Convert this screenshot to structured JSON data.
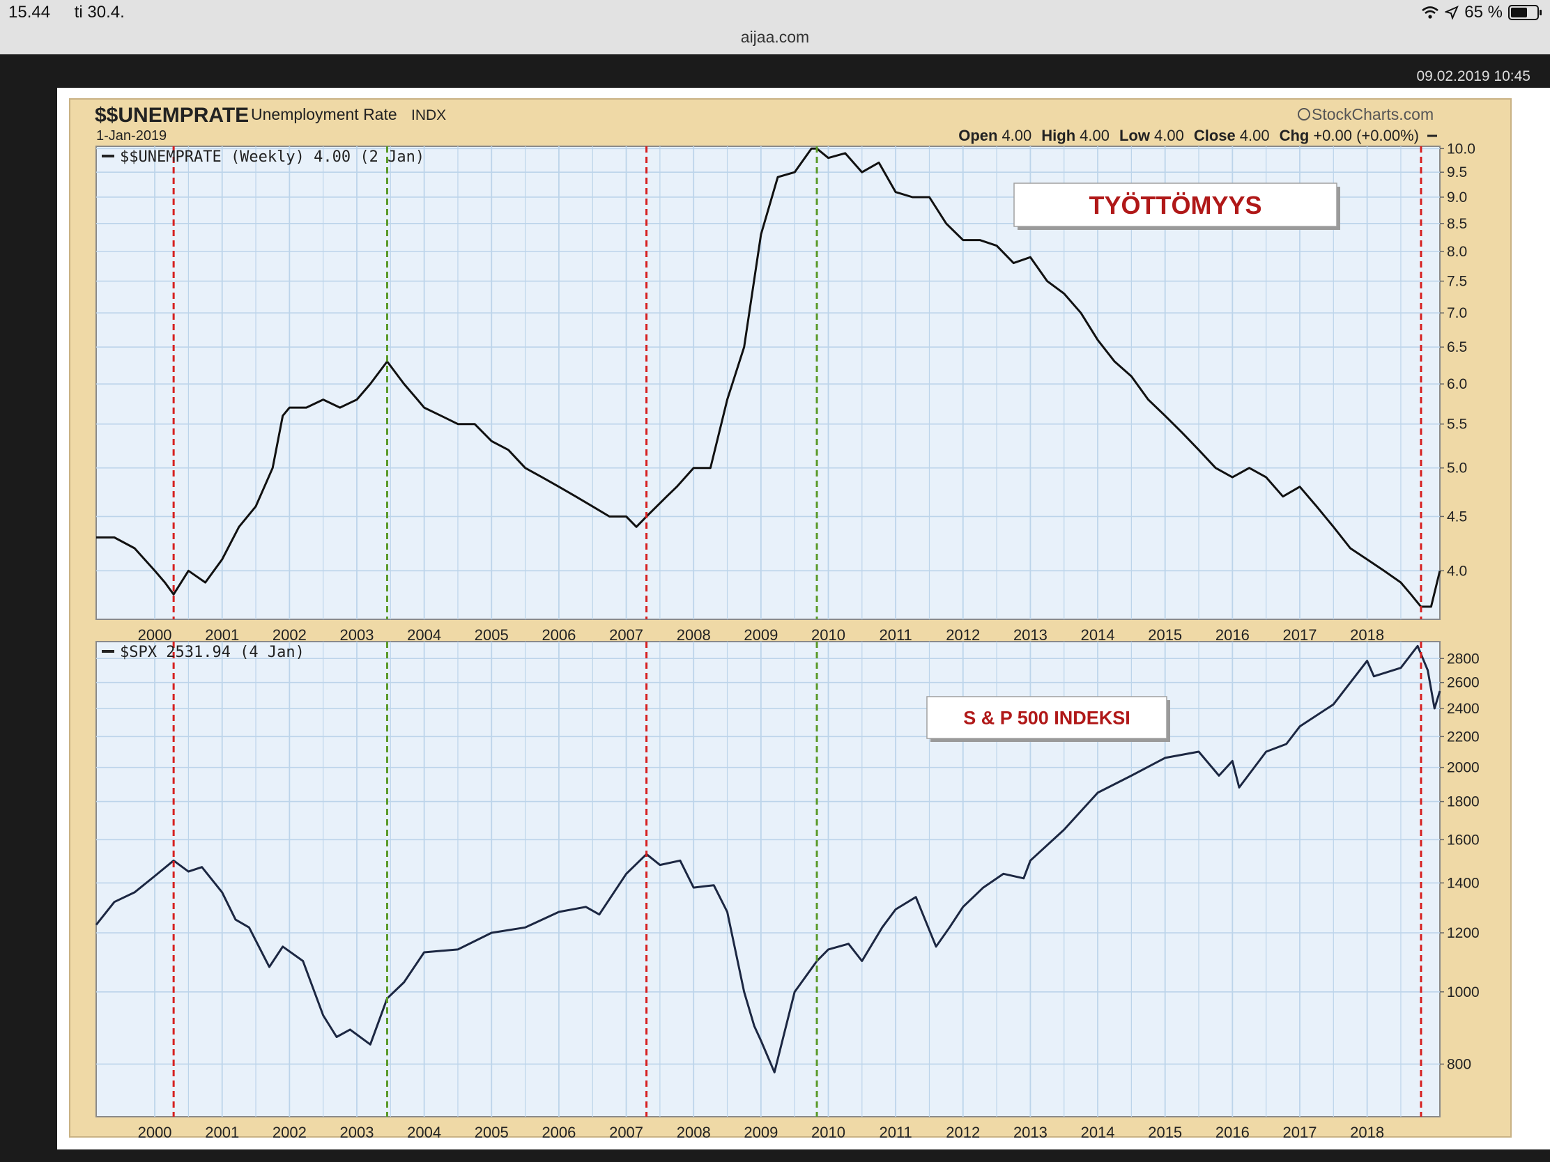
{
  "status_bar": {
    "time": "15.44",
    "date": "ti 30.4.",
    "url": "aijaa.com",
    "battery": "65 %",
    "battery_level": 0.65,
    "icons": [
      "wifi-icon",
      "location-arrow-icon",
      "battery-icon"
    ]
  },
  "screenshot_stamp": "09.02.2019 10:45",
  "header": {
    "symbol": "$$UNEMPRATE",
    "name": "Unemployment Rate",
    "exchange": "INDX",
    "date": "1-Jan-2019",
    "brand": "StockCharts.com",
    "ohlc": [
      {
        "label": "Open",
        "value": "4.00"
      },
      {
        "label": "High",
        "value": "4.00"
      },
      {
        "label": "Low",
        "value": "4.00"
      },
      {
        "label": "Close",
        "value": "4.00"
      },
      {
        "label": "Chg",
        "value": "+0.00 (+0.00%)"
      }
    ]
  },
  "colors": {
    "frame": "#efd9a6",
    "plot_bg": "#e8f1fa",
    "grid": "#bcd4ea",
    "recession_marker": "#d62020",
    "recovery_marker": "#5b9a2a",
    "unemployment_line": "#111111",
    "spx_line": "#1c2742",
    "annotation_text": "#b01818"
  },
  "chart_data": [
    {
      "type": "line",
      "legend": "$$UNEMPRATE (Weekly) 4.00 (2 Jan)",
      "annotation": "TYÖTTÖMYYS",
      "x_labels": [
        "2000",
        "2001",
        "2002",
        "2003",
        "2004",
        "2005",
        "2006",
        "2007",
        "2008",
        "2009",
        "2010",
        "2011",
        "2012",
        "2013",
        "2014",
        "2015",
        "2016",
        "2017",
        "2018"
      ],
      "xlim": [
        1999.13,
        2019.08
      ],
      "ylim": [
        3.6,
        10.05
      ],
      "scale": "log",
      "y_ticks": [
        "10.0",
        "9.5",
        "9.0",
        "8.5",
        "8.0",
        "7.5",
        "7.0",
        "6.5",
        "6.0",
        "5.5",
        "5.0",
        "4.5",
        "4.0"
      ],
      "red_markers": [
        2000.28,
        2007.3,
        2018.8
      ],
      "green_markers": [
        2003.45,
        2009.83
      ],
      "x": [
        1999.13,
        1999.4,
        1999.7,
        2000.0,
        2000.15,
        2000.28,
        2000.5,
        2000.75,
        2001.0,
        2001.25,
        2001.5,
        2001.75,
        2001.9,
        2002.0,
        2002.25,
        2002.5,
        2002.75,
        2003.0,
        2003.2,
        2003.45,
        2003.7,
        2003.9,
        2004.0,
        2004.25,
        2004.5,
        2004.75,
        2005.0,
        2005.25,
        2005.5,
        2005.75,
        2006.0,
        2006.25,
        2006.5,
        2006.75,
        2007.0,
        2007.15,
        2007.3,
        2007.6,
        2007.75,
        2008.0,
        2008.25,
        2008.5,
        2008.75,
        2009.0,
        2009.25,
        2009.5,
        2009.75,
        2009.83,
        2010.0,
        2010.25,
        2010.5,
        2010.75,
        2011.0,
        2011.25,
        2011.5,
        2011.75,
        2012.0,
        2012.25,
        2012.5,
        2012.75,
        2013.0,
        2013.25,
        2013.5,
        2013.75,
        2014.0,
        2014.25,
        2014.5,
        2014.75,
        2015.0,
        2015.25,
        2015.5,
        2015.75,
        2016.0,
        2016.25,
        2016.5,
        2016.75,
        2017.0,
        2017.25,
        2017.5,
        2017.75,
        2018.0,
        2018.25,
        2018.5,
        2018.65,
        2018.8,
        2018.95,
        2019.08
      ],
      "y": [
        4.3,
        4.3,
        4.2,
        4.0,
        3.9,
        3.8,
        4.0,
        3.9,
        4.1,
        4.4,
        4.6,
        5.0,
        5.6,
        5.7,
        5.7,
        5.8,
        5.7,
        5.8,
        6.0,
        6.3,
        6.0,
        5.8,
        5.7,
        5.6,
        5.5,
        5.5,
        5.3,
        5.2,
        5.0,
        4.9,
        4.8,
        4.7,
        4.6,
        4.5,
        4.5,
        4.4,
        4.5,
        4.7,
        4.8,
        5.0,
        5.0,
        5.8,
        6.5,
        8.3,
        9.4,
        9.5,
        10.0,
        10.0,
        9.8,
        9.9,
        9.5,
        9.7,
        9.1,
        9.0,
        9.0,
        8.5,
        8.2,
        8.2,
        8.1,
        7.8,
        7.9,
        7.5,
        7.3,
        7.0,
        6.6,
        6.3,
        6.1,
        5.8,
        5.6,
        5.4,
        5.2,
        5.0,
        4.9,
        5.0,
        4.9,
        4.7,
        4.8,
        4.6,
        4.4,
        4.2,
        4.1,
        4.0,
        3.9,
        3.8,
        3.7,
        3.7,
        4.0
      ]
    },
    {
      "type": "line",
      "legend": "$SPX 2531.94 (4 Jan)",
      "annotation": "S & P 500 INDEKSI",
      "x_labels": [
        "2000",
        "2001",
        "2002",
        "2003",
        "2004",
        "2005",
        "2006",
        "2007",
        "2008",
        "2009",
        "2010",
        "2011",
        "2012",
        "2013",
        "2014",
        "2015",
        "2016",
        "2017",
        "2018"
      ],
      "xlim": [
        1999.13,
        2019.08
      ],
      "ylim": [
        680,
        2950
      ],
      "scale": "log",
      "y_ticks": [
        "2800",
        "2600",
        "2400",
        "2200",
        "2000",
        "1800",
        "1600",
        "1400",
        "1200",
        "1000",
        "800"
      ],
      "red_markers": [
        2000.28,
        2007.3,
        2018.8
      ],
      "green_markers": [
        2003.45,
        2009.83
      ],
      "x": [
        1999.13,
        1999.4,
        1999.7,
        2000.0,
        2000.28,
        2000.5,
        2000.7,
        2001.0,
        2001.2,
        2001.4,
        2001.7,
        2001.9,
        2002.2,
        2002.5,
        2002.7,
        2002.9,
        2003.2,
        2003.45,
        2003.7,
        2004.0,
        2004.5,
        2005.0,
        2005.5,
        2006.0,
        2006.4,
        2006.6,
        2007.0,
        2007.3,
        2007.5,
        2007.8,
        2008.0,
        2008.3,
        2008.5,
        2008.75,
        2008.9,
        2009.0,
        2009.2,
        2009.5,
        2009.83,
        2010.0,
        2010.3,
        2010.5,
        2010.8,
        2011.0,
        2011.3,
        2011.6,
        2011.8,
        2012.0,
        2012.3,
        2012.6,
        2012.9,
        2013.0,
        2013.5,
        2014.0,
        2014.5,
        2015.0,
        2015.5,
        2015.8,
        2016.0,
        2016.1,
        2016.5,
        2016.8,
        2017.0,
        2017.5,
        2018.0,
        2018.1,
        2018.5,
        2018.75,
        2018.9,
        2019.0,
        2019.08
      ],
      "y": [
        1230,
        1320,
        1360,
        1430,
        1500,
        1450,
        1470,
        1360,
        1250,
        1220,
        1080,
        1150,
        1100,
        930,
        870,
        890,
        850,
        980,
        1030,
        1130,
        1140,
        1200,
        1220,
        1280,
        1300,
        1270,
        1440,
        1530,
        1480,
        1500,
        1380,
        1390,
        1280,
        1000,
        900,
        860,
        780,
        1000,
        1100,
        1140,
        1160,
        1100,
        1220,
        1290,
        1340,
        1150,
        1220,
        1300,
        1380,
        1440,
        1420,
        1500,
        1650,
        1850,
        1950,
        2060,
        2100,
        1950,
        2040,
        1880,
        2100,
        2150,
        2270,
        2430,
        2780,
        2650,
        2720,
        2910,
        2700,
        2400,
        2531.94
      ]
    }
  ]
}
